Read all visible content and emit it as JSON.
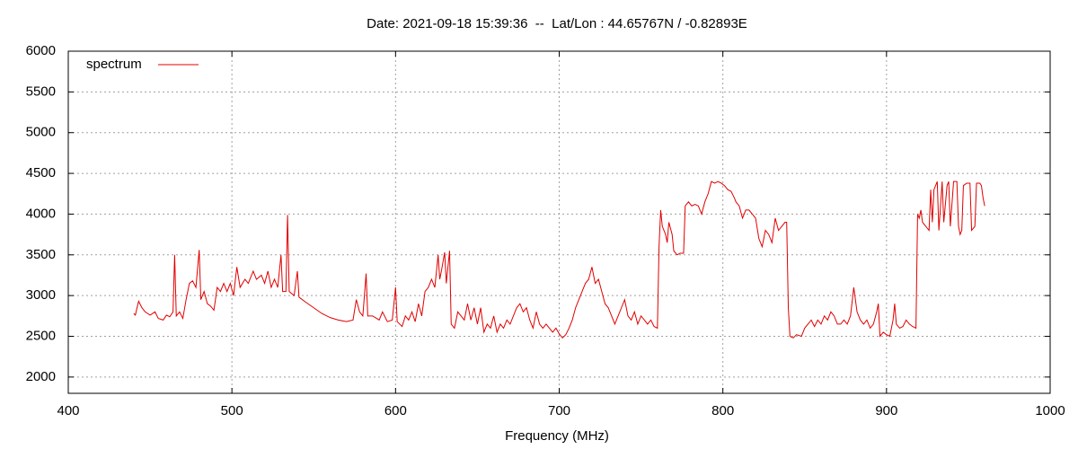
{
  "chart_data": {
    "type": "line",
    "title": "Date: 2021-09-18 15:39:36  --  Lat/Lon : 44.65767N / -0.82893E",
    "x_label": "Frequency (MHz)",
    "xlim": [
      400,
      1000
    ],
    "xticks": [
      400,
      500,
      600,
      700,
      800,
      900,
      1000
    ],
    "ylim": [
      1800,
      6000
    ],
    "yticks": [
      2000,
      2500,
      3000,
      3500,
      4000,
      4500,
      5000,
      5500,
      6000
    ],
    "grid": true,
    "legend": "top-left",
    "x": [
      440,
      441,
      442,
      443,
      445,
      447,
      450,
      453,
      455,
      458,
      460,
      462,
      464,
      465,
      466,
      468,
      470,
      472,
      474,
      476,
      478,
      480,
      481,
      483,
      485,
      487,
      489,
      491,
      493,
      495,
      497,
      499,
      501,
      503,
      505,
      508,
      510,
      513,
      515,
      518,
      520,
      522,
      524,
      526,
      528,
      530,
      531,
      533,
      534,
      535,
      538,
      540,
      541,
      545,
      550,
      555,
      560,
      565,
      570,
      574,
      576,
      578,
      580,
      582,
      583,
      586,
      590,
      592,
      595,
      598,
      600,
      601,
      604,
      606,
      608,
      610,
      612,
      614,
      616,
      618,
      620,
      622,
      624,
      626,
      627,
      628,
      630,
      631,
      633,
      634,
      636,
      638,
      640,
      642,
      644,
      646,
      648,
      650,
      652,
      654,
      656,
      658,
      660,
      662,
      664,
      666,
      668,
      670,
      672,
      674,
      676,
      678,
      680,
      682,
      684,
      686,
      688,
      690,
      692,
      694,
      696,
      698,
      700,
      702,
      704,
      706,
      708,
      710,
      712,
      714,
      716,
      718,
      720,
      722,
      724,
      726,
      728,
      730,
      732,
      734,
      736,
      738,
      740,
      742,
      744,
      746,
      748,
      750,
      752,
      754,
      756,
      758,
      760,
      761,
      762,
      763,
      765,
      766,
      767,
      769,
      770,
      772,
      774,
      776,
      777,
      779,
      781,
      783,
      785,
      787,
      789,
      791,
      793,
      795,
      797,
      799,
      801,
      803,
      805,
      807,
      808,
      810,
      812,
      814,
      816,
      818,
      820,
      822,
      824,
      826,
      828,
      830,
      832,
      834,
      836,
      838,
      839,
      840,
      841,
      843,
      845,
      848,
      850,
      852,
      854,
      856,
      858,
      860,
      862,
      864,
      866,
      868,
      870,
      872,
      874,
      876,
      878,
      880,
      882,
      884,
      886,
      888,
      890,
      892,
      894,
      895,
      896,
      898,
      900,
      902,
      904,
      905,
      906,
      908,
      910,
      912,
      914,
      916,
      918,
      919,
      920,
      921,
      922,
      924,
      926,
      927,
      928,
      929,
      931,
      932,
      934,
      935,
      937,
      938,
      939,
      941,
      943,
      944,
      945,
      946,
      947,
      949,
      951,
      952,
      954,
      955,
      957,
      958,
      959,
      960
    ],
    "series": [
      {
        "name": "spectrum",
        "color": "#e00000",
        "values": [
          2780,
          2760,
          2850,
          2930,
          2850,
          2800,
          2760,
          2800,
          2720,
          2700,
          2760,
          2740,
          2800,
          3500,
          2750,
          2800,
          2720,
          2950,
          3150,
          3180,
          3100,
          3560,
          2950,
          3050,
          2900,
          2870,
          2820,
          3100,
          3050,
          3150,
          3050,
          3150,
          3000,
          3350,
          3100,
          3200,
          3150,
          3300,
          3200,
          3250,
          3150,
          3300,
          3100,
          3200,
          3100,
          3500,
          3050,
          3050,
          3990,
          3050,
          3000,
          3300,
          2980,
          2920,
          2850,
          2780,
          2730,
          2700,
          2680,
          2700,
          2950,
          2800,
          2750,
          3270,
          2750,
          2750,
          2700,
          2800,
          2680,
          2700,
          3100,
          2680,
          2620,
          2750,
          2700,
          2800,
          2680,
          2900,
          2750,
          3050,
          3100,
          3200,
          3100,
          3500,
          3200,
          3300,
          3530,
          3150,
          3550,
          2650,
          2600,
          2800,
          2750,
          2700,
          2900,
          2700,
          2850,
          2650,
          2850,
          2550,
          2650,
          2600,
          2750,
          2550,
          2650,
          2600,
          2700,
          2650,
          2750,
          2850,
          2900,
          2800,
          2850,
          2700,
          2600,
          2800,
          2650,
          2600,
          2650,
          2600,
          2550,
          2600,
          2530,
          2480,
          2520,
          2600,
          2700,
          2850,
          2950,
          3050,
          3150,
          3200,
          3350,
          3150,
          3200,
          3050,
          2900,
          2850,
          2750,
          2650,
          2750,
          2850,
          2950,
          2750,
          2700,
          2800,
          2650,
          2750,
          2700,
          2650,
          2700,
          2620,
          2600,
          3600,
          4050,
          3850,
          3750,
          3650,
          3900,
          3750,
          3550,
          3500,
          3520,
          3520,
          4100,
          4150,
          4100,
          4120,
          4100,
          4000,
          4150,
          4250,
          4400,
          4380,
          4400,
          4380,
          4350,
          4300,
          4280,
          4200,
          4150,
          4100,
          3950,
          4050,
          4050,
          4000,
          3950,
          3700,
          3600,
          3800,
          3750,
          3650,
          3950,
          3800,
          3850,
          3900,
          3900,
          2850,
          2500,
          2480,
          2520,
          2500,
          2600,
          2650,
          2700,
          2620,
          2700,
          2650,
          2750,
          2700,
          2800,
          2750,
          2650,
          2650,
          2700,
          2650,
          2750,
          3100,
          2800,
          2700,
          2650,
          2700,
          2600,
          2650,
          2800,
          2900,
          2500,
          2550,
          2520,
          2500,
          2700,
          2900,
          2650,
          2600,
          2620,
          2700,
          2650,
          2620,
          2600,
          4000,
          3950,
          4050,
          3900,
          3850,
          3800,
          4300,
          3900,
          4300,
          4400,
          3800,
          4400,
          3900,
          4350,
          4400,
          3850,
          4400,
          4400,
          3850,
          3750,
          3800,
          4350,
          4380,
          4380,
          3800,
          3850,
          4380,
          4380,
          4350,
          4200,
          4100
        ]
      }
    ]
  }
}
